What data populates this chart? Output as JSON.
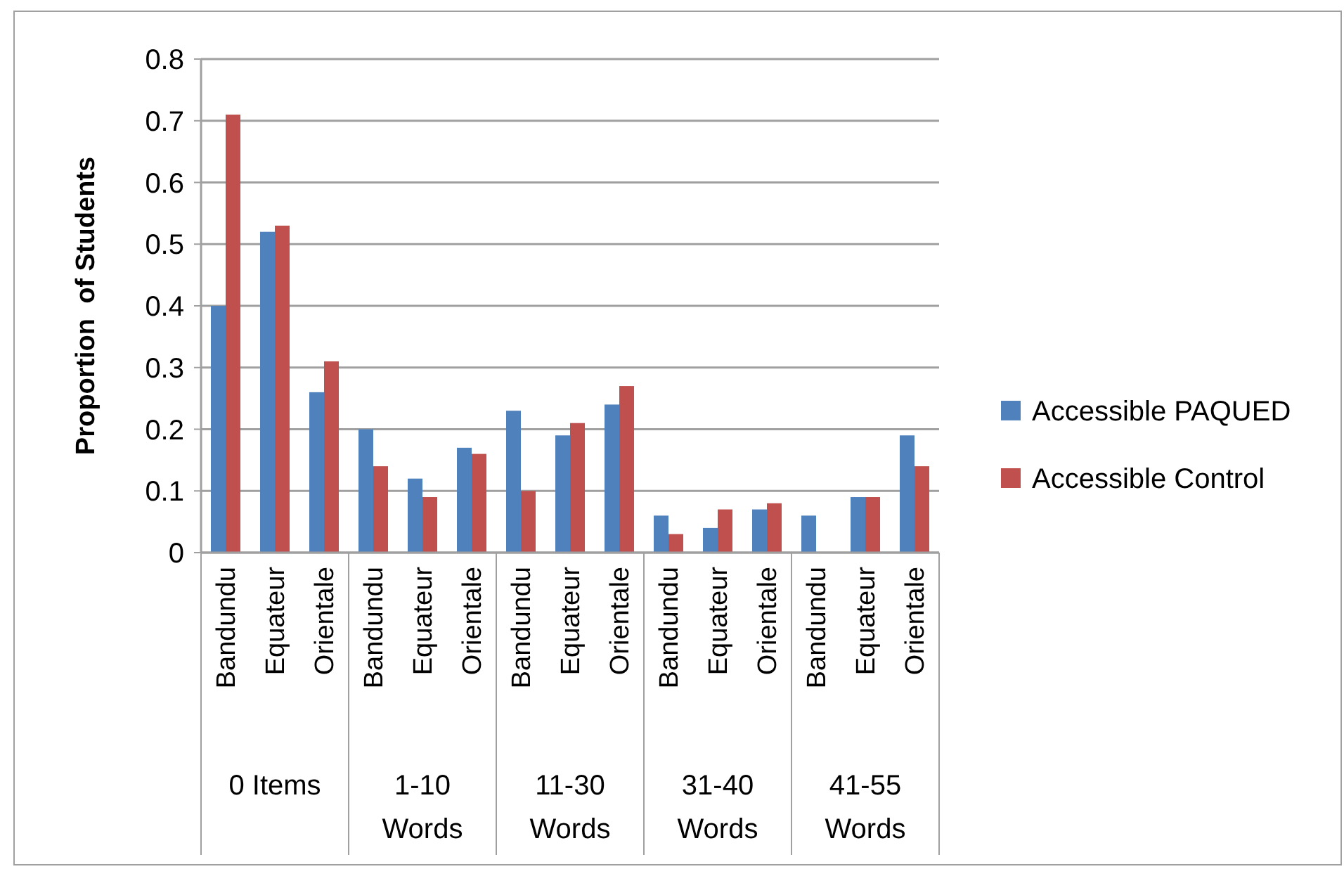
{
  "chart_data": {
    "type": "bar",
    "ylabel": "Proportion  of Students",
    "categories": [
      "Bandundu",
      "Equateur",
      "Orientale",
      "Bandundu",
      "Equateur",
      "Orientale",
      "Bandundu",
      "Equateur",
      "Orientale",
      "Bandundu",
      "Equateur",
      "Orientale",
      "Bandundu",
      "Equateur",
      "Orientale"
    ],
    "series": [
      {
        "name": "Accessible PAQUED",
        "color": "#4f81bd",
        "values": [
          0.4,
          0.52,
          0.26,
          0.2,
          0.12,
          0.17,
          0.23,
          0.19,
          0.24,
          0.06,
          0.04,
          0.07,
          0.06,
          0.09,
          0.19
        ]
      },
      {
        "name": "Accessible Control",
        "color": "#c0504d",
        "values": [
          0.71,
          0.53,
          0.31,
          0.14,
          0.09,
          0.16,
          0.1,
          0.21,
          0.27,
          0.03,
          0.07,
          0.08,
          0,
          0.09,
          0.14
        ]
      }
    ],
    "annotations": [
      "0 Items",
      "1-10 Words",
      "11-30 Words",
      "31-40 Words",
      "41-55 Words"
    ],
    "ylim": [
      0,
      0.8
    ],
    "yticks": [
      {
        "value": 0,
        "label": "0"
      },
      0.1,
      0.2,
      0.3,
      0.4,
      0.5,
      0.6,
      0.7,
      0.8
    ],
    "grid": "y",
    "legend": "right"
  }
}
